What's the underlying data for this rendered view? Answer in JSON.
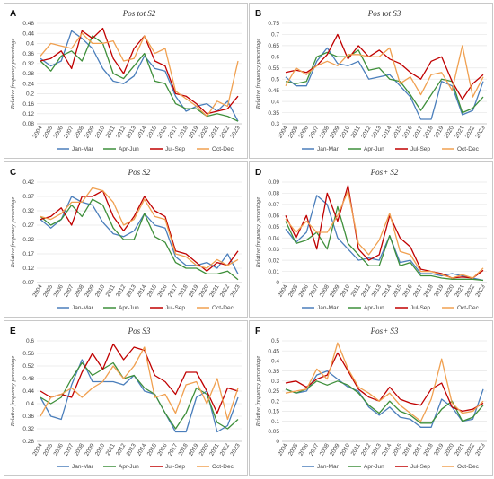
{
  "colors": {
    "jan_mar": "#4a7ebb",
    "apr_jun": "#3e8f3a",
    "jul_sep": "#c00000",
    "oct_dec": "#f0a050",
    "grid": "#e6e6e6",
    "axis": "#bfbfbf"
  },
  "chart_data": [
    {
      "type": "line",
      "letter": "A",
      "title": "Pos tot S2",
      "ylabel": "Relative frequency percentage",
      "x": [
        "2004",
        "2005",
        "2006",
        "2007",
        "2008",
        "2009",
        "2010",
        "2011",
        "2012",
        "2013",
        "2014",
        "2015",
        "2016",
        "2017",
        "2018",
        "2019",
        "2020",
        "2021",
        "2022",
        "2023"
      ],
      "yticks": [
        "0.08",
        "0.12",
        "0.16",
        "0.2",
        "0.24",
        "0.28",
        "0.32",
        "0.36",
        "0.4",
        "0.44",
        "0.48"
      ],
      "ylim": [
        0.08,
        0.48
      ],
      "series": [
        {
          "name": "Jan-Mar",
          "color": "#4a7ebb",
          "values": [
            0.34,
            0.31,
            0.33,
            0.45,
            0.42,
            0.38,
            0.3,
            0.25,
            0.24,
            0.27,
            0.35,
            0.3,
            0.29,
            0.19,
            0.13,
            0.15,
            0.16,
            0.13,
            0.17,
            0.09
          ]
        },
        {
          "name": "Apr-Jun",
          "color": "#3e8f3a",
          "values": [
            0.33,
            0.29,
            0.35,
            0.37,
            0.33,
            0.43,
            0.4,
            0.28,
            0.26,
            0.31,
            0.36,
            0.25,
            0.24,
            0.16,
            0.14,
            0.14,
            0.11,
            0.12,
            0.11,
            0.09
          ]
        },
        {
          "name": "Jul-Sep",
          "color": "#c00000",
          "values": [
            0.33,
            0.34,
            0.37,
            0.3,
            0.45,
            0.42,
            0.46,
            0.34,
            0.28,
            0.38,
            0.43,
            0.33,
            0.31,
            0.2,
            0.19,
            0.16,
            0.12,
            0.13,
            0.14,
            0.19
          ]
        },
        {
          "name": "Oct-Dec",
          "color": "#f0a050",
          "values": [
            0.35,
            0.4,
            0.39,
            0.38,
            0.44,
            0.4,
            0.4,
            0.41,
            0.33,
            0.34,
            0.43,
            0.36,
            0.38,
            0.21,
            0.18,
            0.15,
            0.11,
            0.17,
            0.15,
            0.33
          ]
        }
      ]
    },
    {
      "type": "line",
      "letter": "B",
      "title": "Pos tot S3",
      "ylabel": "Relative frequency percentage",
      "x": [
        "2004",
        "2005",
        "2006",
        "2007",
        "2008",
        "2009",
        "2010",
        "2011",
        "2012",
        "2013",
        "2014",
        "2015",
        "2016",
        "2017",
        "2018",
        "2019",
        "2020",
        "2021",
        "2022",
        "2023"
      ],
      "yticks": [
        "0.3",
        "0.35",
        "0.4",
        "0.45",
        "0.5",
        "0.55",
        "0.6",
        "0.65",
        "0.7",
        "0.75"
      ],
      "ylim": [
        0.3,
        0.75
      ],
      "series": [
        {
          "name": "Jan-Mar",
          "color": "#4a7ebb",
          "values": [
            0.51,
            0.47,
            0.47,
            0.58,
            0.64,
            0.57,
            0.56,
            0.58,
            0.5,
            0.51,
            0.52,
            0.47,
            0.42,
            0.32,
            0.32,
            0.49,
            0.47,
            0.34,
            0.36,
            0.49
          ]
        },
        {
          "name": "Apr-Jun",
          "color": "#3e8f3a",
          "values": [
            0.49,
            0.48,
            0.49,
            0.6,
            0.62,
            0.6,
            0.6,
            0.63,
            0.54,
            0.55,
            0.5,
            0.49,
            0.43,
            0.36,
            0.43,
            0.5,
            0.49,
            0.35,
            0.37,
            0.42
          ]
        },
        {
          "name": "Jul-Sep",
          "color": "#c00000",
          "values": [
            0.53,
            0.54,
            0.53,
            0.56,
            0.61,
            0.7,
            0.59,
            0.65,
            0.6,
            0.63,
            0.59,
            0.57,
            0.53,
            0.5,
            0.58,
            0.6,
            0.49,
            0.41,
            0.48,
            0.52
          ]
        },
        {
          "name": "Oct-Dec",
          "color": "#f0a050",
          "values": [
            0.47,
            0.55,
            0.52,
            0.56,
            0.58,
            0.56,
            0.61,
            0.61,
            0.6,
            0.6,
            0.64,
            0.48,
            0.51,
            0.43,
            0.52,
            0.53,
            0.45,
            0.65,
            0.42,
            0.51
          ]
        }
      ]
    },
    {
      "type": "line",
      "letter": "C",
      "title": "Pos S2",
      "ylabel": "Relative frequency percentage",
      "x": [
        "2004",
        "2005",
        "2006",
        "2007",
        "2008",
        "2009",
        "2010",
        "2011",
        "2012",
        "2013",
        "2014",
        "2015",
        "2016",
        "2017",
        "2018",
        "2019",
        "2020",
        "2021",
        "2022",
        "2023"
      ],
      "yticks": [
        "0.07",
        "0.12",
        "0.17",
        "0.22",
        "0.27",
        "0.32",
        "0.37",
        "0.42"
      ],
      "ylim": [
        0.07,
        0.42
      ],
      "series": [
        {
          "name": "Jan-Mar",
          "color": "#4a7ebb",
          "values": [
            0.29,
            0.26,
            0.29,
            0.37,
            0.35,
            0.34,
            0.28,
            0.24,
            0.23,
            0.25,
            0.31,
            0.27,
            0.26,
            0.16,
            0.13,
            0.13,
            0.14,
            0.12,
            0.17,
            0.1
          ]
        },
        {
          "name": "Apr-Jun",
          "color": "#3e8f3a",
          "values": [
            0.3,
            0.27,
            0.29,
            0.34,
            0.3,
            0.36,
            0.34,
            0.26,
            0.22,
            0.22,
            0.31,
            0.23,
            0.21,
            0.14,
            0.12,
            0.12,
            0.1,
            0.1,
            0.11,
            0.08
          ]
        },
        {
          "name": "Jul-Sep",
          "color": "#c00000",
          "values": [
            0.29,
            0.3,
            0.33,
            0.27,
            0.37,
            0.37,
            0.39,
            0.3,
            0.25,
            0.3,
            0.37,
            0.32,
            0.3,
            0.18,
            0.17,
            0.14,
            0.11,
            0.14,
            0.13,
            0.18
          ]
        },
        {
          "name": "Oct-Dec",
          "color": "#f0a050",
          "values": [
            0.3,
            0.29,
            0.31,
            0.35,
            0.35,
            0.4,
            0.39,
            0.35,
            0.27,
            0.29,
            0.36,
            0.3,
            0.29,
            0.17,
            0.16,
            0.13,
            0.12,
            0.15,
            0.13,
            0.15
          ]
        }
      ]
    },
    {
      "type": "line",
      "letter": "D",
      "title": "Pos+ S2",
      "ylabel": "Relative frequency percentage",
      "x": [
        "2004",
        "2005",
        "2006",
        "2007",
        "2008",
        "2009",
        "2010",
        "2011",
        "2012",
        "2013",
        "2014",
        "2015",
        "2016",
        "2017",
        "2018",
        "2019",
        "2020",
        "2021",
        "2022",
        "2023"
      ],
      "yticks": [
        "0",
        "0.01",
        "0.02",
        "0.03",
        "0.04",
        "0.05",
        "0.06",
        "0.07",
        "0.08",
        "0.09"
      ],
      "ylim": [
        0,
        0.09
      ],
      "series": [
        {
          "name": "Jan-Mar",
          "color": "#4a7ebb",
          "values": [
            0.048,
            0.036,
            0.045,
            0.078,
            0.07,
            0.04,
            0.03,
            0.02,
            0.022,
            0.02,
            0.042,
            0.018,
            0.02,
            0.008,
            0.008,
            0.006,
            0.008,
            0.006,
            0.004,
            0.002
          ]
        },
        {
          "name": "Apr-Jun",
          "color": "#3e8f3a",
          "values": [
            0.055,
            0.035,
            0.038,
            0.045,
            0.03,
            0.068,
            0.035,
            0.025,
            0.015,
            0.015,
            0.042,
            0.015,
            0.018,
            0.006,
            0.006,
            0.004,
            0.003,
            0.003,
            0.003,
            0.002
          ]
        },
        {
          "name": "Jul-Sep",
          "color": "#c00000",
          "values": [
            0.06,
            0.04,
            0.06,
            0.03,
            0.08,
            0.055,
            0.087,
            0.03,
            0.02,
            0.025,
            0.06,
            0.04,
            0.032,
            0.012,
            0.01,
            0.008,
            0.004,
            0.005,
            0.004,
            0.011
          ]
        },
        {
          "name": "Oct-Dec",
          "color": "#f0a050",
          "values": [
            0.057,
            0.045,
            0.055,
            0.045,
            0.045,
            0.06,
            0.082,
            0.035,
            0.025,
            0.038,
            0.062,
            0.028,
            0.025,
            0.01,
            0.01,
            0.007,
            0.004,
            0.007,
            0.004,
            0.013
          ]
        }
      ]
    },
    {
      "type": "line",
      "letter": "E",
      "title": "Pos S3",
      "ylabel": "Relative frequency percentage",
      "x": [
        "2004",
        "2005",
        "2006",
        "2007",
        "2008",
        "2009",
        "2010",
        "2011",
        "2012",
        "2013",
        "2014",
        "2015",
        "2016",
        "2017",
        "2018",
        "2019",
        "2020",
        "2021",
        "2022",
        "2023"
      ],
      "yticks": [
        "0.28",
        "0.32",
        "0.36",
        "0.4",
        "0.44",
        "0.48",
        "0.52",
        "0.56",
        "0.6"
      ],
      "ylim": [
        0.28,
        0.6
      ],
      "series": [
        {
          "name": "Jan-Mar",
          "color": "#4a7ebb",
          "values": [
            0.42,
            0.36,
            0.35,
            0.46,
            0.54,
            0.47,
            0.47,
            0.47,
            0.46,
            0.49,
            0.44,
            0.43,
            0.37,
            0.31,
            0.31,
            0.42,
            0.44,
            0.31,
            0.33,
            0.42
          ]
        },
        {
          "name": "Apr-Jun",
          "color": "#3e8f3a",
          "values": [
            0.42,
            0.4,
            0.42,
            0.48,
            0.53,
            0.49,
            0.51,
            0.53,
            0.48,
            0.49,
            0.45,
            0.43,
            0.37,
            0.32,
            0.37,
            0.45,
            0.43,
            0.34,
            0.32,
            0.35
          ]
        },
        {
          "name": "Jul-Sep",
          "color": "#c00000",
          "values": [
            0.44,
            0.42,
            0.43,
            0.42,
            0.5,
            0.56,
            0.51,
            0.59,
            0.54,
            0.58,
            0.57,
            0.49,
            0.47,
            0.43,
            0.5,
            0.5,
            0.44,
            0.37,
            0.45,
            0.44
          ]
        },
        {
          "name": "Oct-Dec",
          "color": "#f0a050",
          "values": [
            0.36,
            0.42,
            0.43,
            0.45,
            0.42,
            0.45,
            0.47,
            0.52,
            0.48,
            0.52,
            0.58,
            0.42,
            0.43,
            0.37,
            0.46,
            0.47,
            0.4,
            0.48,
            0.35,
            0.45
          ]
        }
      ]
    },
    {
      "type": "line",
      "letter": "F",
      "title": "Pos+ S3",
      "ylabel": "Relative frequency percentage",
      "x": [
        "2004",
        "2005",
        "2006",
        "2007",
        "2008",
        "2009",
        "2010",
        "2011",
        "2012",
        "2013",
        "2014",
        "2015",
        "2016",
        "2017",
        "2018",
        "2019",
        "2020",
        "2021",
        "2022",
        "2023"
      ],
      "yticks": [
        "0",
        "0.05",
        "0.1",
        "0.15",
        "0.2",
        "0.25",
        "0.3",
        "0.35",
        "0.4",
        "0.45",
        "0.5"
      ],
      "ylim": [
        0,
        0.5
      ],
      "series": [
        {
          "name": "Jan-Mar",
          "color": "#4a7ebb",
          "values": [
            0.26,
            0.24,
            0.25,
            0.33,
            0.35,
            0.31,
            0.27,
            0.25,
            0.17,
            0.13,
            0.17,
            0.12,
            0.11,
            0.07,
            0.07,
            0.21,
            0.17,
            0.1,
            0.11,
            0.26
          ]
        },
        {
          "name": "Apr-Jun",
          "color": "#3e8f3a",
          "values": [
            0.26,
            0.24,
            0.26,
            0.3,
            0.28,
            0.3,
            0.28,
            0.24,
            0.18,
            0.14,
            0.2,
            0.15,
            0.13,
            0.09,
            0.09,
            0.16,
            0.2,
            0.1,
            0.12,
            0.18
          ]
        },
        {
          "name": "Jul-Sep",
          "color": "#c00000",
          "values": [
            0.29,
            0.3,
            0.27,
            0.31,
            0.33,
            0.44,
            0.35,
            0.26,
            0.22,
            0.2,
            0.27,
            0.21,
            0.19,
            0.18,
            0.26,
            0.29,
            0.17,
            0.15,
            0.16,
            0.19
          ]
        },
        {
          "name": "Oct-Dec",
          "color": "#f0a050",
          "values": [
            0.24,
            0.25,
            0.26,
            0.36,
            0.31,
            0.49,
            0.36,
            0.27,
            0.24,
            0.2,
            0.24,
            0.18,
            0.14,
            0.1,
            0.21,
            0.41,
            0.19,
            0.14,
            0.15,
            0.2
          ]
        }
      ]
    }
  ]
}
